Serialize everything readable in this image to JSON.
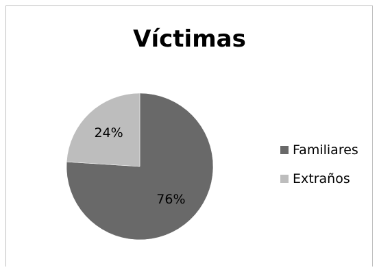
{
  "chart_data": {
    "type": "pie",
    "title": "Víctimas",
    "categories": [
      "Familiares",
      "Extraños"
    ],
    "values": [
      76,
      24
    ],
    "data_labels": [
      "76%",
      "24%"
    ],
    "colors": [
      "#696969",
      "#bdbdbd"
    ],
    "legend_position": "right"
  }
}
